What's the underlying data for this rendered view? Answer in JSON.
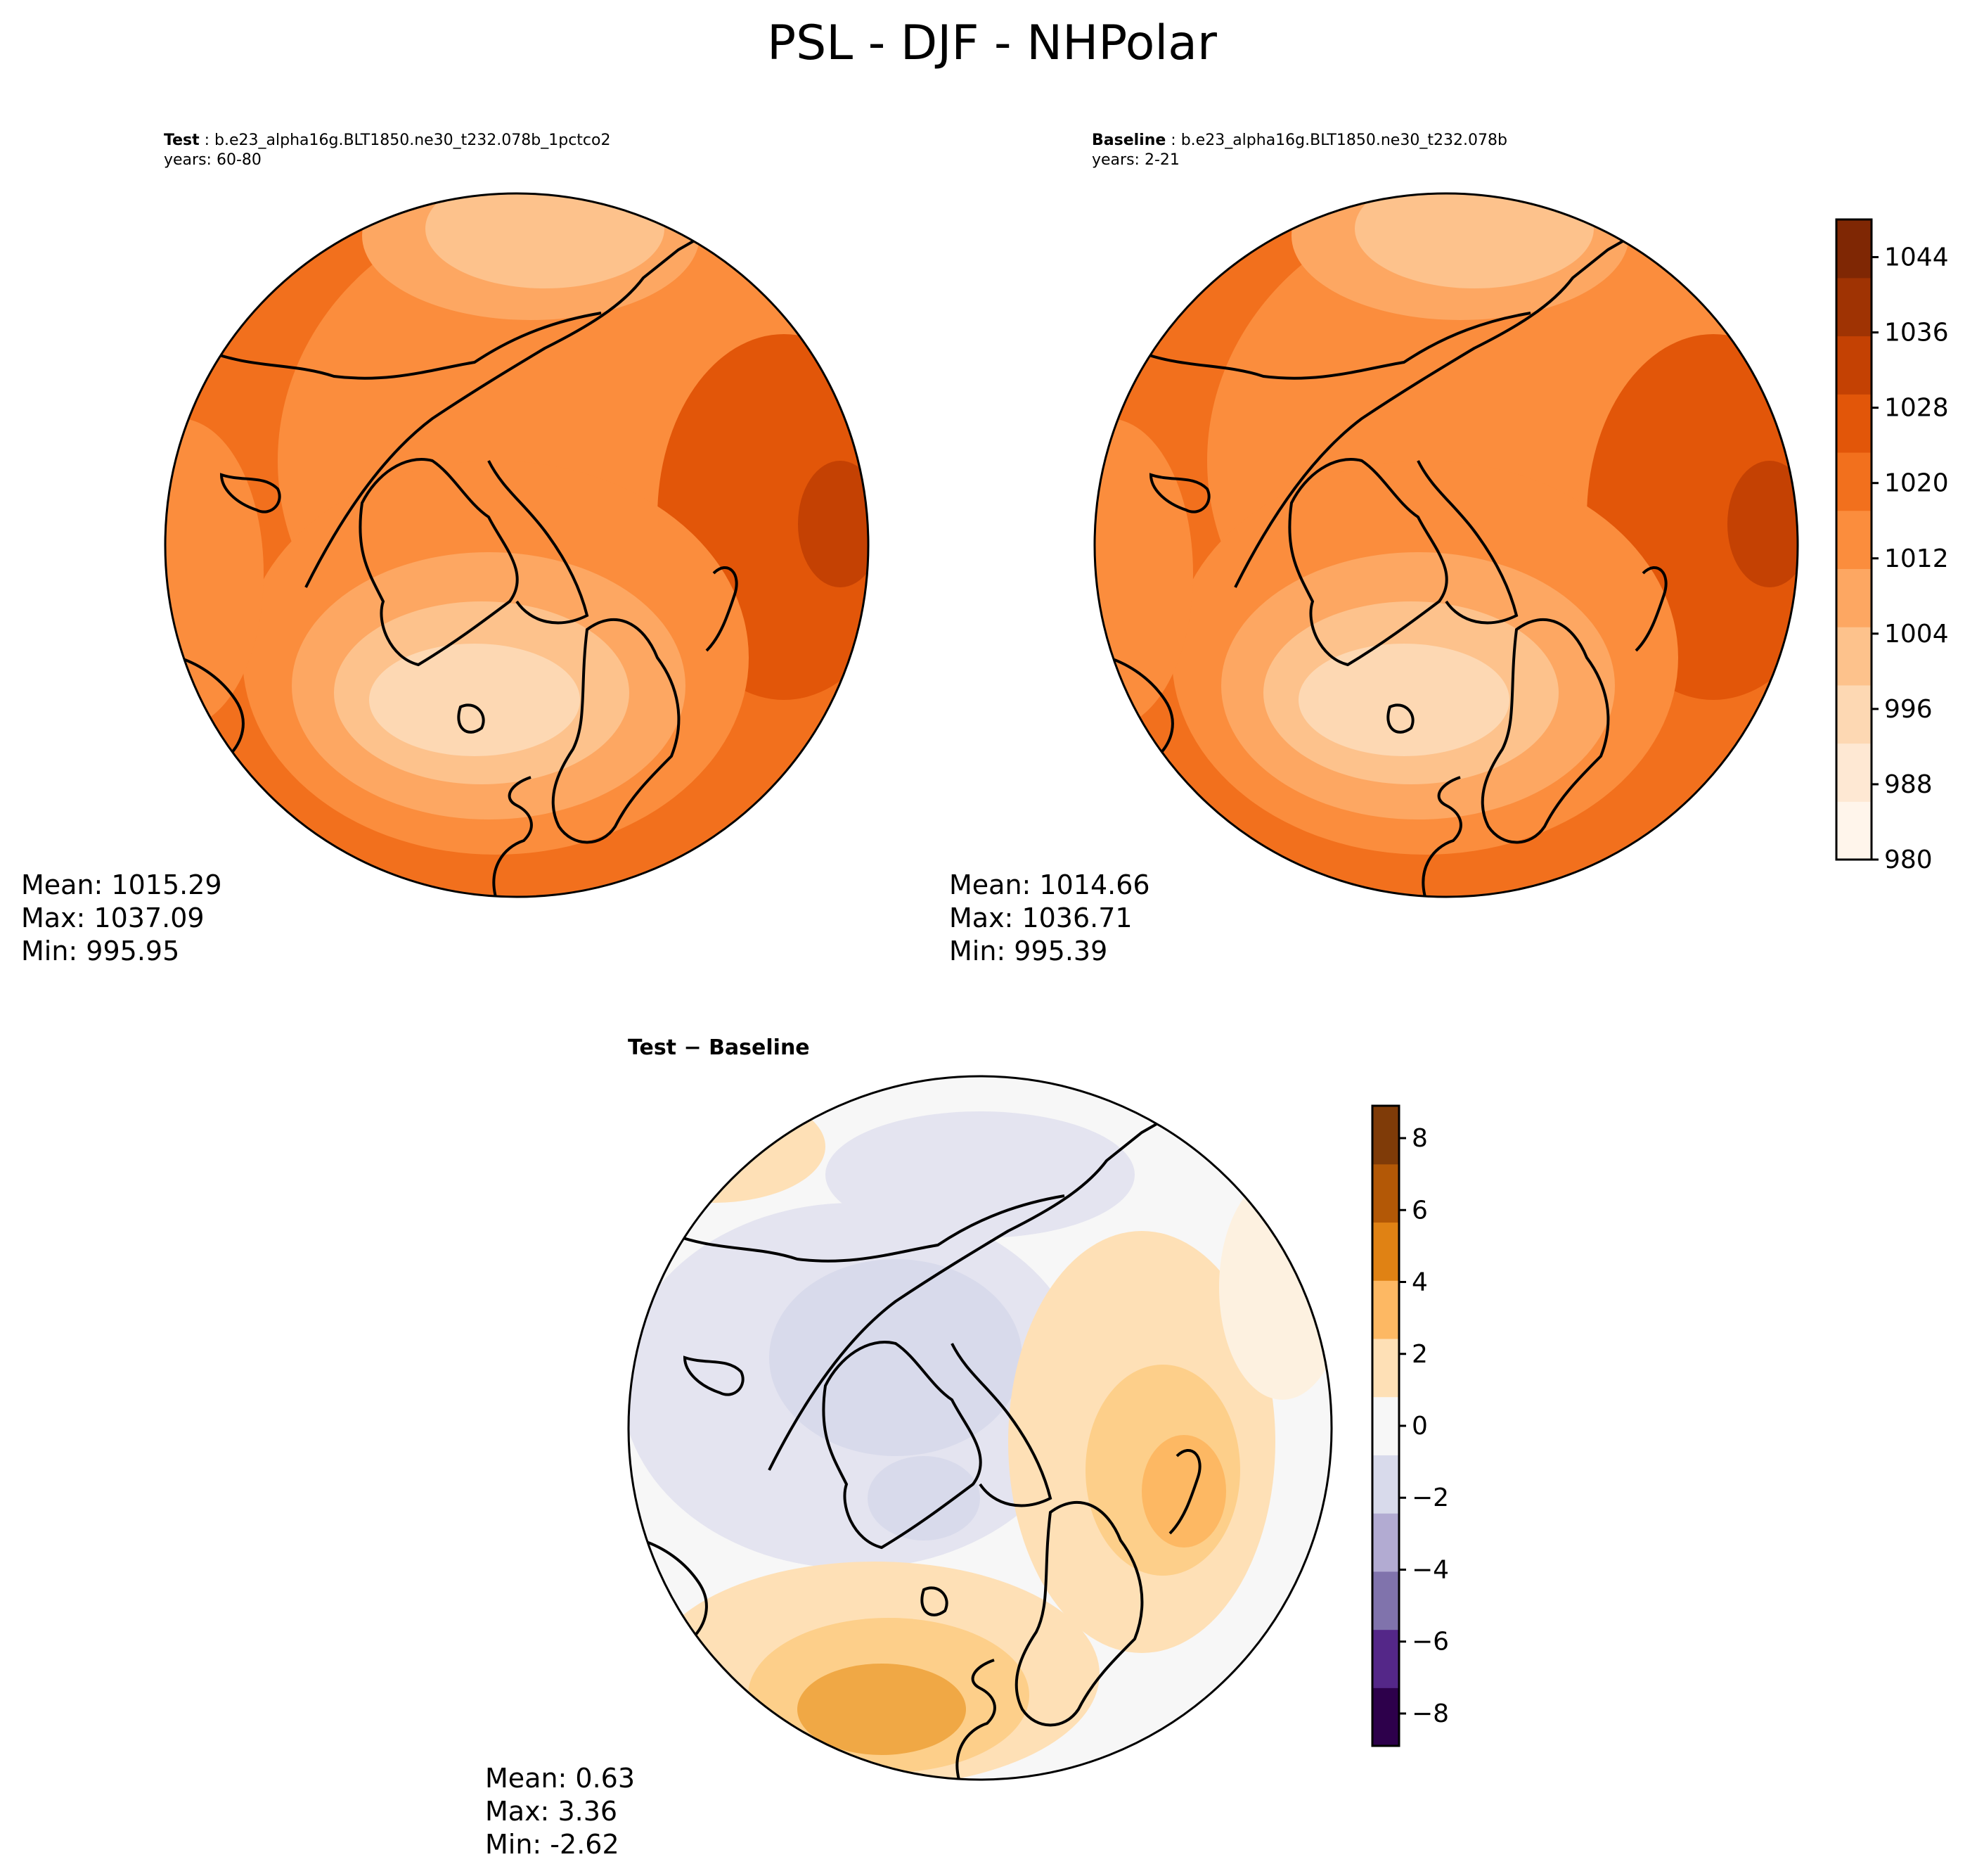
{
  "figure": {
    "title": "PSL - DJF - NHPolar"
  },
  "panels": {
    "test": {
      "label": "Test",
      "case": "b.e23_alpha16g.BLT1850.ne30_t232.078b_1pctco2",
      "years": "years: 60-80",
      "stats": {
        "mean": "Mean: 1015.29",
        "max": "Max: 1037.09",
        "min": "Min: 995.95"
      }
    },
    "baseline": {
      "label": "Baseline",
      "case": "b.e23_alpha16g.BLT1850.ne30_t232.078b",
      "years": "years: 2-21",
      "stats": {
        "mean": "Mean: 1014.66",
        "max": "Max: 1036.71",
        "min": "Min: 995.39"
      }
    },
    "diff": {
      "title_a": "Test",
      "title_op": " − ",
      "title_b": "Baseline",
      "stats": {
        "mean": "Mean:  0.63",
        "max": "Max:  3.36",
        "min": "Min: -2.62"
      }
    }
  },
  "colorbars": {
    "main": {
      "ticks": [
        "980",
        "988",
        "996",
        "1004",
        "1012",
        "1020",
        "1028",
        "1036",
        "1044"
      ],
      "colors": [
        "#fff5eb",
        "#fee8d3",
        "#fdd8b3",
        "#fdc28c",
        "#fda762",
        "#fb8d3d",
        "#f2701d",
        "#e25609",
        "#c44103",
        "#9f3303",
        "#7f2704"
      ]
    },
    "diff": {
      "ticks": [
        "−8",
        "−6",
        "−4",
        "−2",
        "0",
        "2",
        "4",
        "6",
        "8"
      ],
      "colors": [
        "#2d004b",
        "#542788",
        "#8073ac",
        "#b2abd2",
        "#d8daeb",
        "#f7f7f7",
        "#fee0b6",
        "#fdb863",
        "#e08214",
        "#b35806",
        "#7f3b08"
      ]
    }
  }
}
